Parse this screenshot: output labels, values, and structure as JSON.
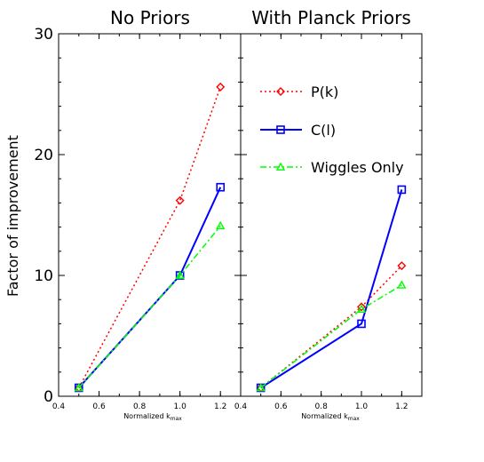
{
  "chart_data": [
    {
      "type": "line",
      "title": "No Priors",
      "xlabel": "Normalized k",
      "xlabel_sub": "max",
      "ylabel": "Factor of improvement",
      "xlim": [
        0.4,
        1.3
      ],
      "ylim": [
        0,
        30
      ],
      "x_ticks": [
        0.4,
        0.6,
        0.8,
        1.0,
        1.2
      ],
      "x_tick_labels": [
        "0.4",
        "0.6",
        "0.8",
        "1.0",
        "1.2"
      ],
      "y_ticks": [
        0,
        10,
        20,
        30
      ],
      "y_tick_labels": [
        "0",
        "10",
        "20",
        "30"
      ],
      "series": [
        {
          "name": "P(k)",
          "color": "#ff0000",
          "dash": "dotted",
          "marker": "diamond",
          "x": [
            0.5,
            1.0,
            1.2
          ],
          "y": [
            0.7,
            16.2,
            25.6
          ]
        },
        {
          "name": "C(l)",
          "color": "#0000ff",
          "dash": "solid",
          "marker": "square",
          "x": [
            0.5,
            1.0,
            1.2
          ],
          "y": [
            0.7,
            10.0,
            17.3
          ]
        },
        {
          "name": "Wiggles Only",
          "color": "#00ff00",
          "dash": "dashdot",
          "marker": "triangle",
          "x": [
            0.5,
            1.0,
            1.2
          ],
          "y": [
            0.7,
            10.0,
            14.1
          ]
        }
      ]
    },
    {
      "type": "line",
      "title": "With Planck Priors",
      "xlabel": "Normalized k",
      "xlabel_sub": "max",
      "xlim": [
        0.4,
        1.3
      ],
      "ylim": [
        0,
        30
      ],
      "x_ticks": [
        0.4,
        0.6,
        0.8,
        1.0,
        1.2
      ],
      "x_tick_labels": [
        "0.4",
        "0.6",
        "0.8",
        "1.0",
        "1.2"
      ],
      "legend_position": "top-right",
      "series": [
        {
          "name": "P(k)",
          "color": "#ff0000",
          "dash": "dotted",
          "marker": "diamond",
          "x": [
            0.5,
            1.0,
            1.2
          ],
          "y": [
            0.7,
            7.4,
            10.8
          ]
        },
        {
          "name": "C(l)",
          "color": "#0000ff",
          "dash": "solid",
          "marker": "square",
          "x": [
            0.5,
            1.0,
            1.2
          ],
          "y": [
            0.7,
            6.0,
            17.1
          ]
        },
        {
          "name": "Wiggles Only",
          "color": "#00ff00",
          "dash": "dashdot",
          "marker": "triangle",
          "x": [
            0.5,
            1.0,
            1.2
          ],
          "y": [
            0.7,
            7.2,
            9.2
          ]
        }
      ]
    }
  ]
}
